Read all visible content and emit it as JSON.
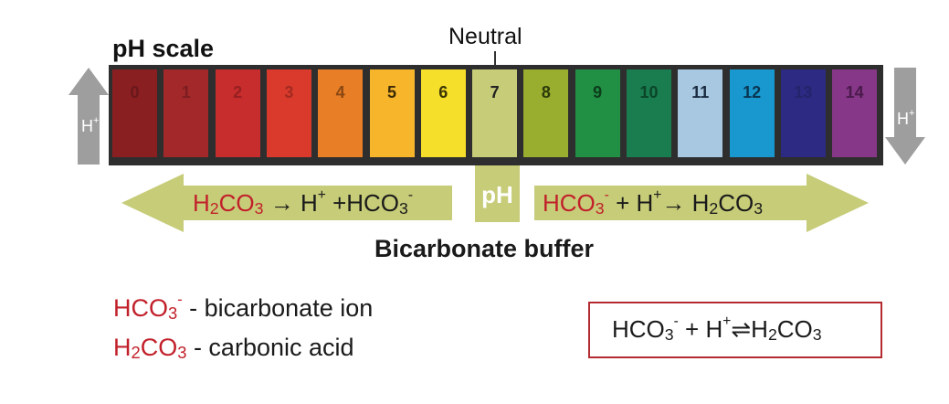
{
  "scale": {
    "title": "pH scale",
    "neutral_label": "Neutral",
    "center_label": "pH",
    "h_left_label": "H",
    "h_right_label": "H",
    "h_sup": "+",
    "cells": [
      {
        "value": "0",
        "color": "#8a1f22",
        "text_color": "#6a181b"
      },
      {
        "value": "1",
        "color": "#a2282a",
        "text_color": "#7c1d20"
      },
      {
        "value": "2",
        "color": "#c82d2d",
        "text_color": "#961f21"
      },
      {
        "value": "3",
        "color": "#d93a2c",
        "text_color": "#a52a20"
      },
      {
        "value": "4",
        "color": "#e87e26",
        "text_color": "#8a4712"
      },
      {
        "value": "5",
        "color": "#f6b52b",
        "text_color": "#3a2a05"
      },
      {
        "value": "6",
        "color": "#f5df2a",
        "text_color": "#3a3405"
      },
      {
        "value": "7",
        "color": "#c6cc78",
        "text_color": "#222222"
      },
      {
        "value": "8",
        "color": "#99ad2f",
        "text_color": "#2c3a0a"
      },
      {
        "value": "9",
        "color": "#218f44",
        "text_color": "#0c3d1b"
      },
      {
        "value": "10",
        "color": "#1a7d50",
        "text_color": "#0b4529"
      },
      {
        "value": "11",
        "color": "#a7c8e0",
        "text_color": "#1a2a40"
      },
      {
        "value": "12",
        "color": "#1898cf",
        "text_color": "#0a3550"
      },
      {
        "value": "13",
        "color": "#2c2a82",
        "text_color": "#24236b"
      },
      {
        "value": "14",
        "color": "#863787",
        "text_color": "#4a1a4c"
      }
    ]
  },
  "left_arrow": {
    "reactant_h": "H",
    "reactant_2": "2",
    "reactant_co": "CO",
    "reactant_3": "3",
    "arrow": "→",
    "product_h": "H",
    "product_h_sup": "+",
    "plus": "+",
    "product_hco": "HCO",
    "product_3": "3",
    "product_sup": "-"
  },
  "right_arrow": {
    "reactant_hco": "HCO",
    "reactant_3": "3",
    "reactant_sup": "-",
    "plus": "+",
    "reactant_h": "H",
    "reactant_h_sup": "+",
    "arrow": "→",
    "product_h": "H",
    "product_2": "2",
    "product_co": "CO",
    "product_3": "3"
  },
  "buffer_title": "Bicarbonate buffer",
  "legend": {
    "item1": {
      "formula": "HCO",
      "sub": "3",
      "sup": "-",
      "desc": " - bicarbonate ion"
    },
    "item2": {
      "formula_h": "H",
      "sub2": "2",
      "formula_co": "CO",
      "sub3": "3",
      "desc": " - carbonic acid"
    }
  },
  "equilibrium": {
    "hco": "HCO",
    "sub": "3",
    "sup": "-",
    "plus": " + ",
    "h": "H",
    "h_sup": "+",
    "arrow": "⇌",
    "product_h": "H",
    "product_2": "2",
    "product_co": "CO",
    "product_3": "3"
  },
  "colors": {
    "arrow_fill": "#c6cc78",
    "side_arrow_fill": "#9e9e9e",
    "accent_red": "#c2202a",
    "box_border": "#b32a30"
  }
}
